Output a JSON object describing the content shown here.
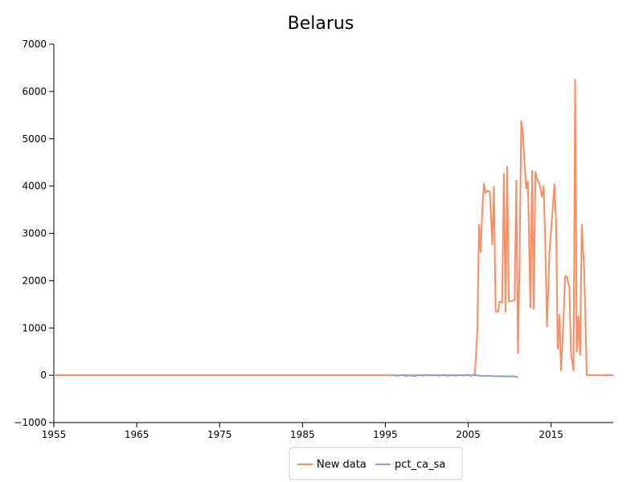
{
  "chart_data": {
    "type": "line",
    "title": "Belarus",
    "xlabel": "",
    "ylabel": "",
    "xlim": [
      1955,
      2022.5
    ],
    "ylim": [
      -1000,
      7000
    ],
    "x_ticks": [
      1955,
      1965,
      1975,
      1985,
      1995,
      2005,
      2015
    ],
    "y_ticks": [
      -1000,
      0,
      1000,
      2000,
      3000,
      4000,
      5000,
      6000,
      7000
    ],
    "grid": false,
    "legend_position": "bottom",
    "series": [
      {
        "name": "New data",
        "color": "#fc8d62",
        "points": [
          [
            1955,
            0
          ],
          [
            2005.8,
            0
          ],
          [
            2006.1,
            950
          ],
          [
            2006.3,
            3180
          ],
          [
            2006.5,
            2600
          ],
          [
            2006.7,
            3500
          ],
          [
            2006.9,
            4050
          ],
          [
            2007.1,
            3850
          ],
          [
            2007.3,
            3900
          ],
          [
            2007.6,
            3880
          ],
          [
            2007.9,
            2760
          ],
          [
            2008.1,
            3990
          ],
          [
            2008.3,
            1350
          ],
          [
            2008.6,
            1340
          ],
          [
            2008.8,
            1560
          ],
          [
            2009.1,
            1530
          ],
          [
            2009.3,
            4250
          ],
          [
            2009.5,
            1340
          ],
          [
            2009.7,
            4410
          ],
          [
            2009.9,
            1560
          ],
          [
            2010.2,
            1560
          ],
          [
            2010.6,
            1600
          ],
          [
            2010.8,
            4120
          ],
          [
            2011.0,
            470
          ],
          [
            2011.2,
            2500
          ],
          [
            2011.4,
            5380
          ],
          [
            2011.6,
            5100
          ],
          [
            2011.8,
            4450
          ],
          [
            2012.0,
            3950
          ],
          [
            2012.2,
            4100
          ],
          [
            2012.5,
            1430
          ],
          [
            2012.7,
            4320
          ],
          [
            2012.9,
            1400
          ],
          [
            2013.1,
            4300
          ],
          [
            2013.3,
            4150
          ],
          [
            2013.6,
            4050
          ],
          [
            2013.9,
            3780
          ],
          [
            2014.1,
            4000
          ],
          [
            2014.3,
            2800
          ],
          [
            2014.5,
            1030
          ],
          [
            2014.8,
            2600
          ],
          [
            2015.1,
            3300
          ],
          [
            2015.4,
            4040
          ],
          [
            2015.6,
            3200
          ],
          [
            2015.8,
            560
          ],
          [
            2016.0,
            1280
          ],
          [
            2016.2,
            100
          ],
          [
            2016.5,
            1200
          ],
          [
            2016.7,
            2100
          ],
          [
            2016.9,
            2080
          ],
          [
            2017.2,
            1850
          ],
          [
            2017.4,
            450
          ],
          [
            2017.7,
            100
          ],
          [
            2017.9,
            6250
          ],
          [
            2018.1,
            500
          ],
          [
            2018.3,
            1250
          ],
          [
            2018.5,
            430
          ],
          [
            2018.7,
            3180
          ],
          [
            2019.0,
            2200
          ],
          [
            2019.3,
            0
          ],
          [
            2022.5,
            0
          ]
        ]
      },
      {
        "name": "pct_ca_sa",
        "color": "#8da0cb",
        "points": [
          [
            1996.0,
            0
          ],
          [
            1996.5,
            -10
          ],
          [
            1997.0,
            5
          ],
          [
            1997.5,
            -15
          ],
          [
            1998.0,
            0
          ],
          [
            1998.5,
            -20
          ],
          [
            1999.0,
            5
          ],
          [
            1999.5,
            -10
          ],
          [
            2000.0,
            10
          ],
          [
            2000.5,
            -5
          ],
          [
            2001.0,
            8
          ],
          [
            2001.5,
            -12
          ],
          [
            2002.0,
            6
          ],
          [
            2002.5,
            -8
          ],
          [
            2003.0,
            5
          ],
          [
            2003.5,
            -10
          ],
          [
            2004.0,
            8
          ],
          [
            2004.5,
            -5
          ],
          [
            2005.0,
            10
          ],
          [
            2005.3,
            -15
          ],
          [
            2005.7,
            15
          ],
          [
            2006.0,
            -5
          ],
          [
            2006.5,
            -10
          ],
          [
            2007.0,
            -15
          ],
          [
            2007.5,
            -12
          ],
          [
            2008.0,
            -18
          ],
          [
            2008.5,
            -22
          ],
          [
            2009.0,
            -20
          ],
          [
            2009.5,
            -28
          ],
          [
            2010.0,
            -22
          ],
          [
            2010.5,
            -25
          ],
          [
            2011.0,
            -40
          ]
        ]
      }
    ]
  }
}
